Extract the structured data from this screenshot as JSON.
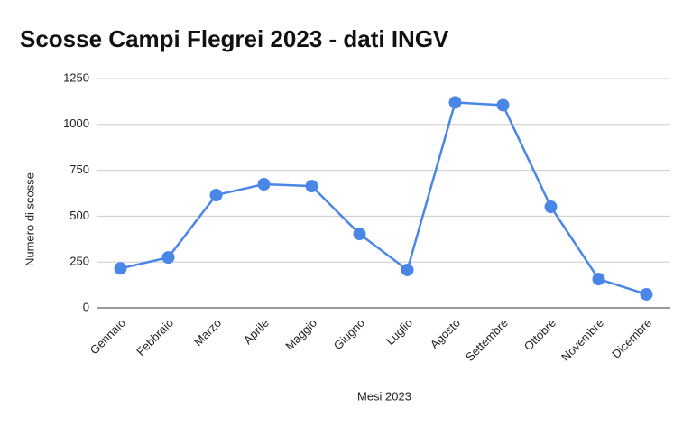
{
  "chart_data": {
    "type": "line",
    "title": "Scosse Campi Flegrei 2023 - dati INGV",
    "x_label": "Mesi 2023",
    "y_label": "Numero di scosse",
    "categories": [
      "Gennaio",
      "Febbraio",
      "Marzo",
      "Aprile",
      "Maggio",
      "Giugno",
      "Luglio",
      "Agosto",
      "Settembre",
      "Ottobre",
      "Novembre",
      "Dicembre"
    ],
    "series": [
      {
        "name": "Numero di scosse",
        "color": "#4a86e8",
        "values": [
          215,
          275,
          615,
          674,
          664,
          403,
          207,
          1120,
          1105,
          551,
          157,
          74
        ]
      }
    ],
    "ylim": [
      0,
      1250
    ],
    "yticks": [
      0,
      250,
      500,
      750,
      1000,
      1250
    ],
    "grid": true
  }
}
